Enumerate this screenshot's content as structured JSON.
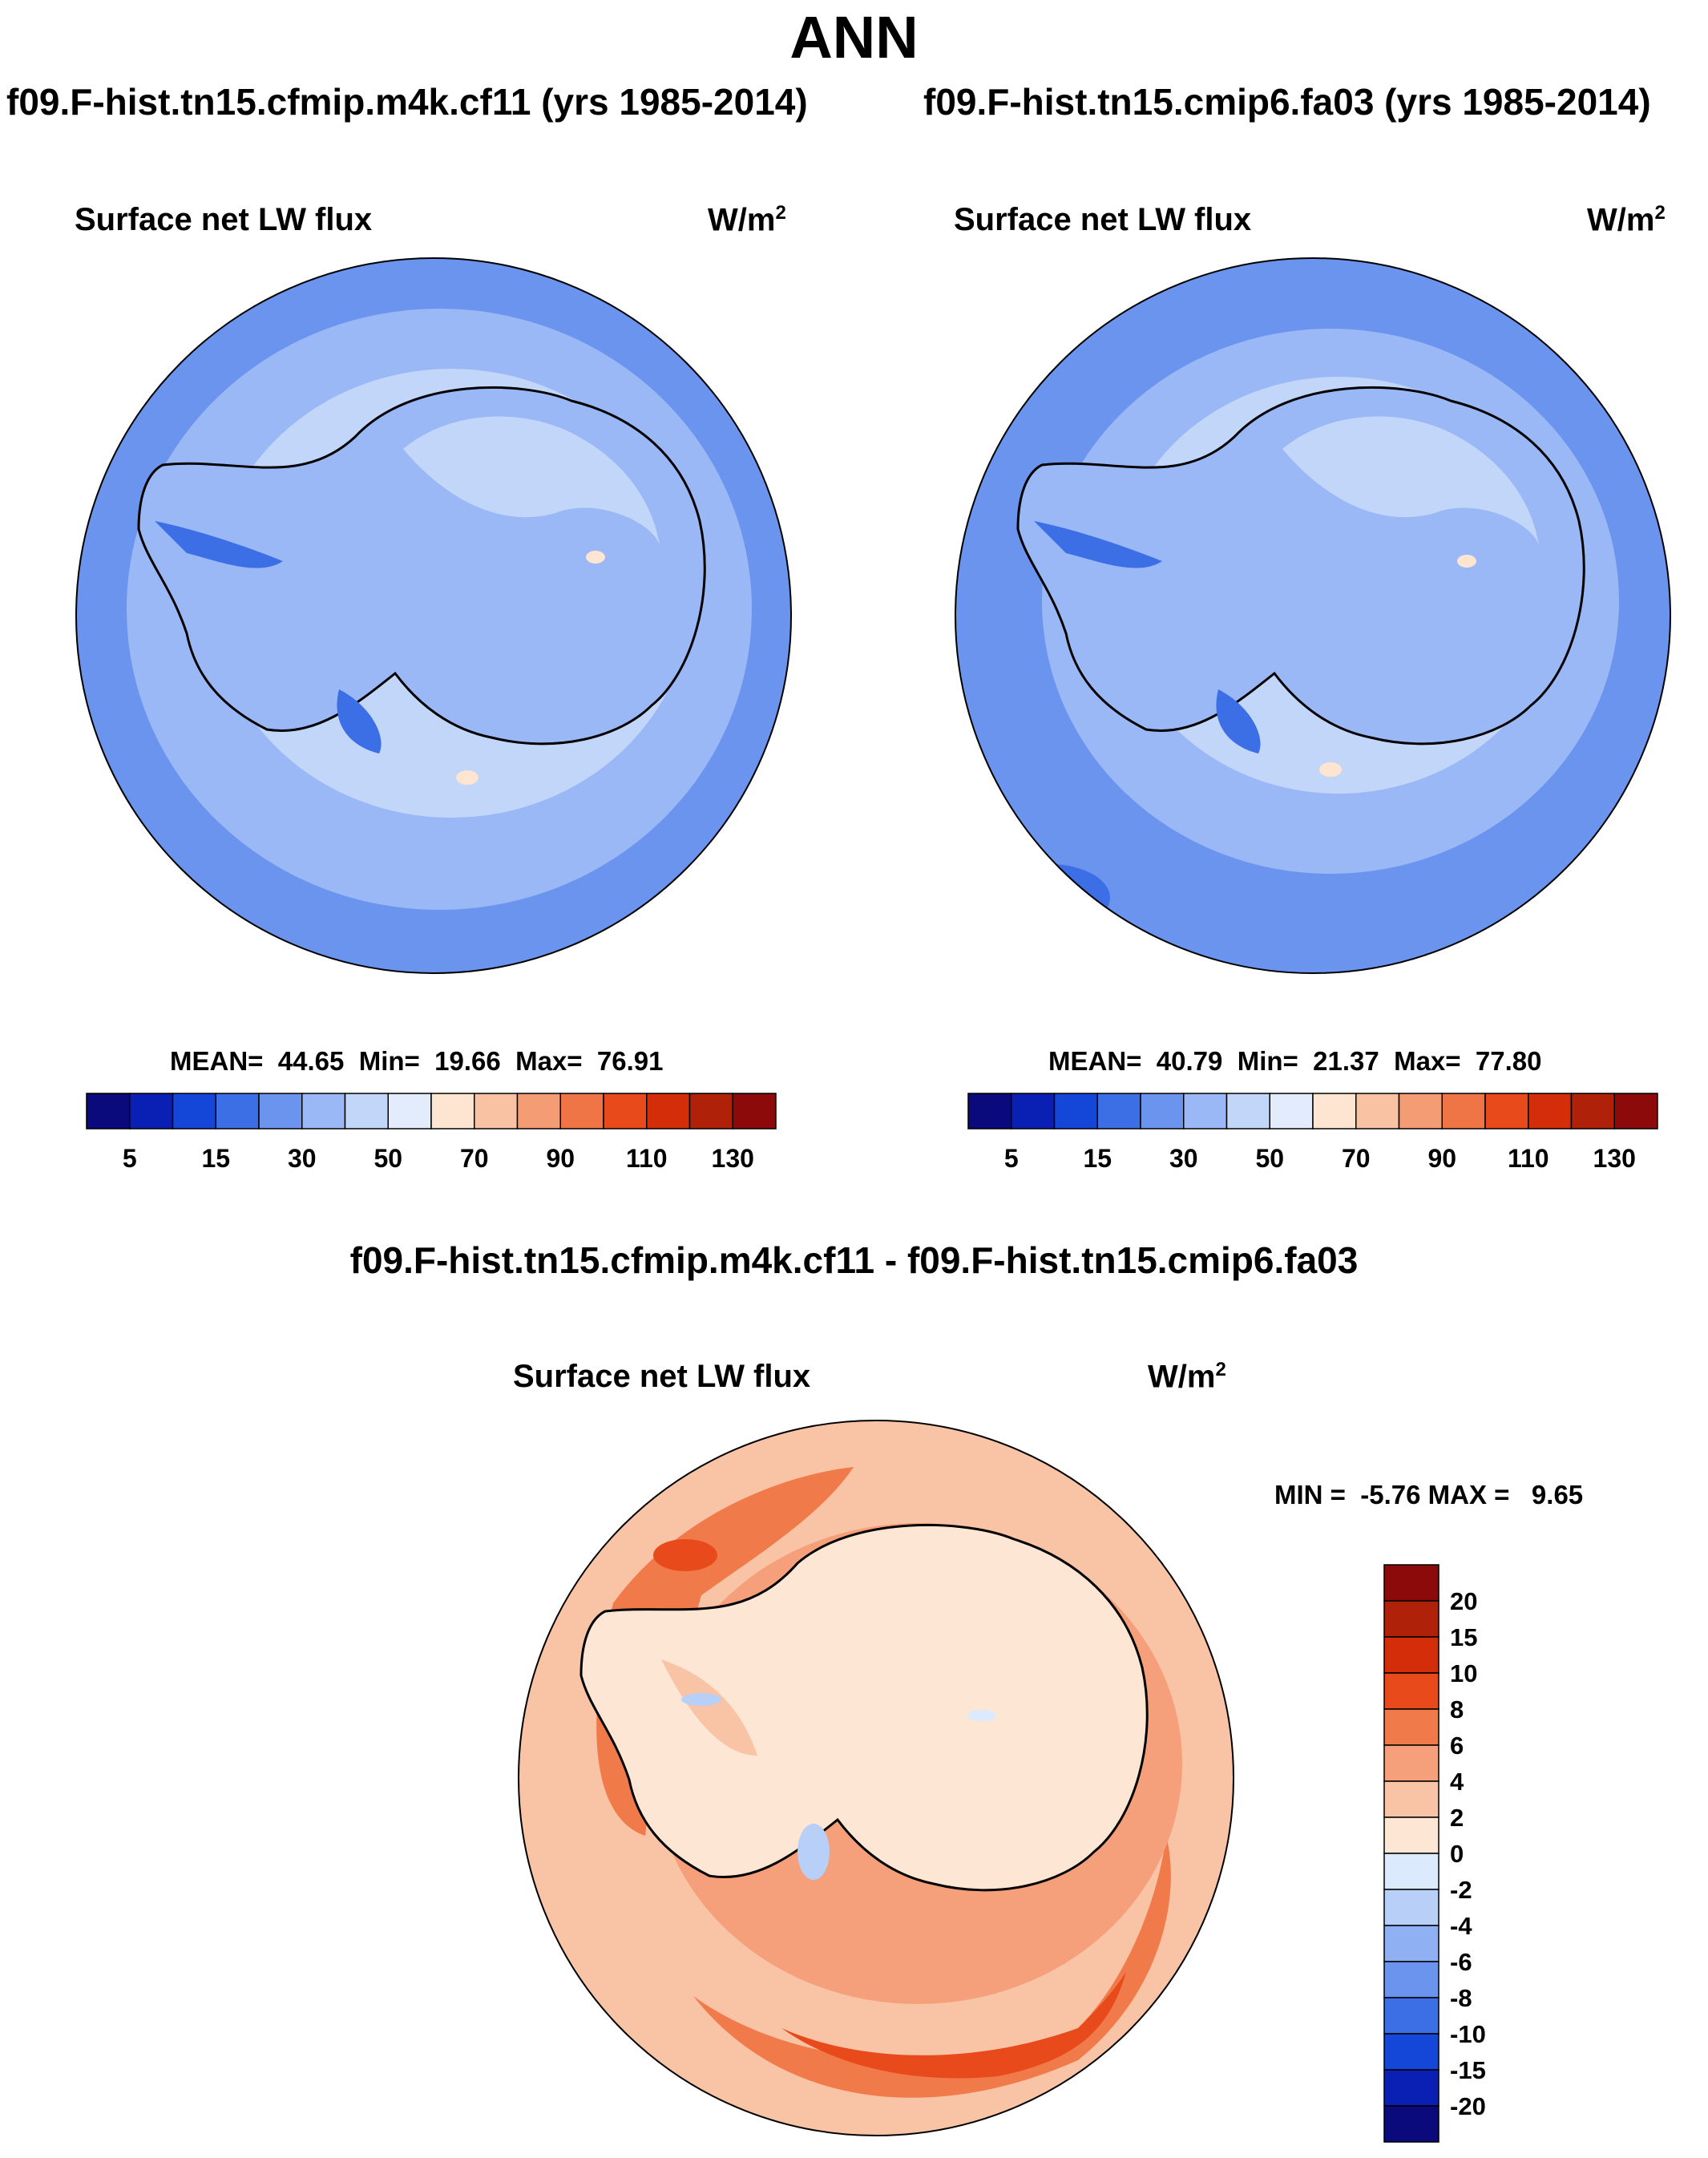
{
  "title": "ANN",
  "panels": [
    {
      "case_title": "f09.F-hist.tn15.cfmip.m4k.cf11 (yrs 1985-2014)",
      "variable": "Surface net LW flux",
      "units_base": "W/m",
      "units_exp": "2",
      "stats": {
        "mean_label": "MEAN=",
        "mean": "44.65",
        "min_label": "Min=",
        "min": "19.66",
        "max_label": "Max=",
        "max": "76.91"
      }
    },
    {
      "case_title": "f09.F-hist.tn15.cmip6.fa03 (yrs 1985-2014)",
      "variable": "Surface net LW flux",
      "units_base": "W/m",
      "units_exp": "2",
      "stats": {
        "mean_label": "MEAN=",
        "mean": "40.79",
        "min_label": "Min=",
        "min": "21.37",
        "max_label": "Max=",
        "max": "77.80"
      }
    }
  ],
  "abs_colorbar": {
    "colors": [
      "#0a0a7d",
      "#0a1fb4",
      "#1447d8",
      "#3c6fe6",
      "#6a94ee",
      "#9ab8f5",
      "#c2d6f9",
      "#e2ecfc",
      "#fde5d2",
      "#f9c2a3",
      "#f49c73",
      "#ef7547",
      "#e84a1c",
      "#d42d0a",
      "#b0210a",
      "#8c0a0a"
    ],
    "ticks": [
      "5",
      "15",
      "30",
      "50",
      "70",
      "90",
      "110",
      "130"
    ]
  },
  "diff": {
    "title": "f09.F-hist.tn15.cfmip.m4k.cf11 - f09.F-hist.tn15.cmip6.fa03",
    "variable": "Surface net LW flux",
    "units_base": "W/m",
    "units_exp": "2",
    "stats": "MIN =  -5.76 MAX =   9.65",
    "colorbar": {
      "colors": [
        "#8c0a0a",
        "#b0210a",
        "#d42d0a",
        "#e84a1c",
        "#f07a4a",
        "#f5a07a",
        "#f9c3a5",
        "#fde6d4",
        "#dbeafc",
        "#b8cff8",
        "#8fb0f2",
        "#6a94ee",
        "#3c6fe6",
        "#1447d8",
        "#0a1fb4",
        "#0a0a7d"
      ],
      "labels": [
        "20",
        "15",
        "10",
        "8",
        "6",
        "4",
        "2",
        "0",
        "-2",
        "-4",
        "-6",
        "-8",
        "-10",
        "-15",
        "-20"
      ]
    }
  }
}
